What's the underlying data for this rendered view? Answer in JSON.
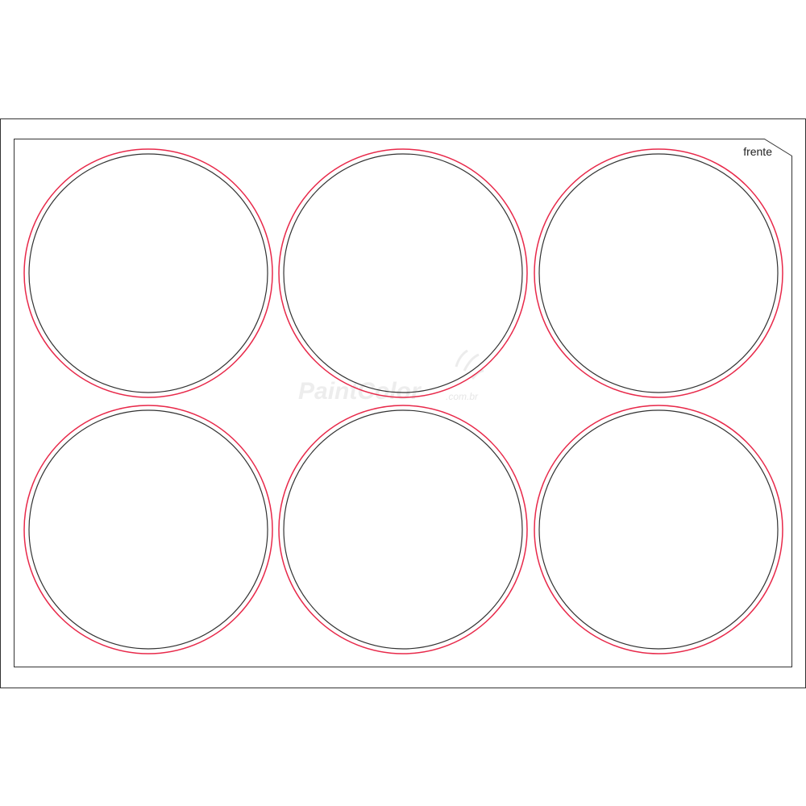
{
  "sheet": {
    "side_label": "frente",
    "watermark": {
      "brand": "PaintColor",
      "suffix": ".com.br"
    },
    "label_grid": {
      "rows": 2,
      "columns": 3
    }
  },
  "colors": {
    "background": "#ffffff",
    "sheet_border": "#333333",
    "bleed_line": "#e8294a",
    "cut_line": "#333333"
  }
}
